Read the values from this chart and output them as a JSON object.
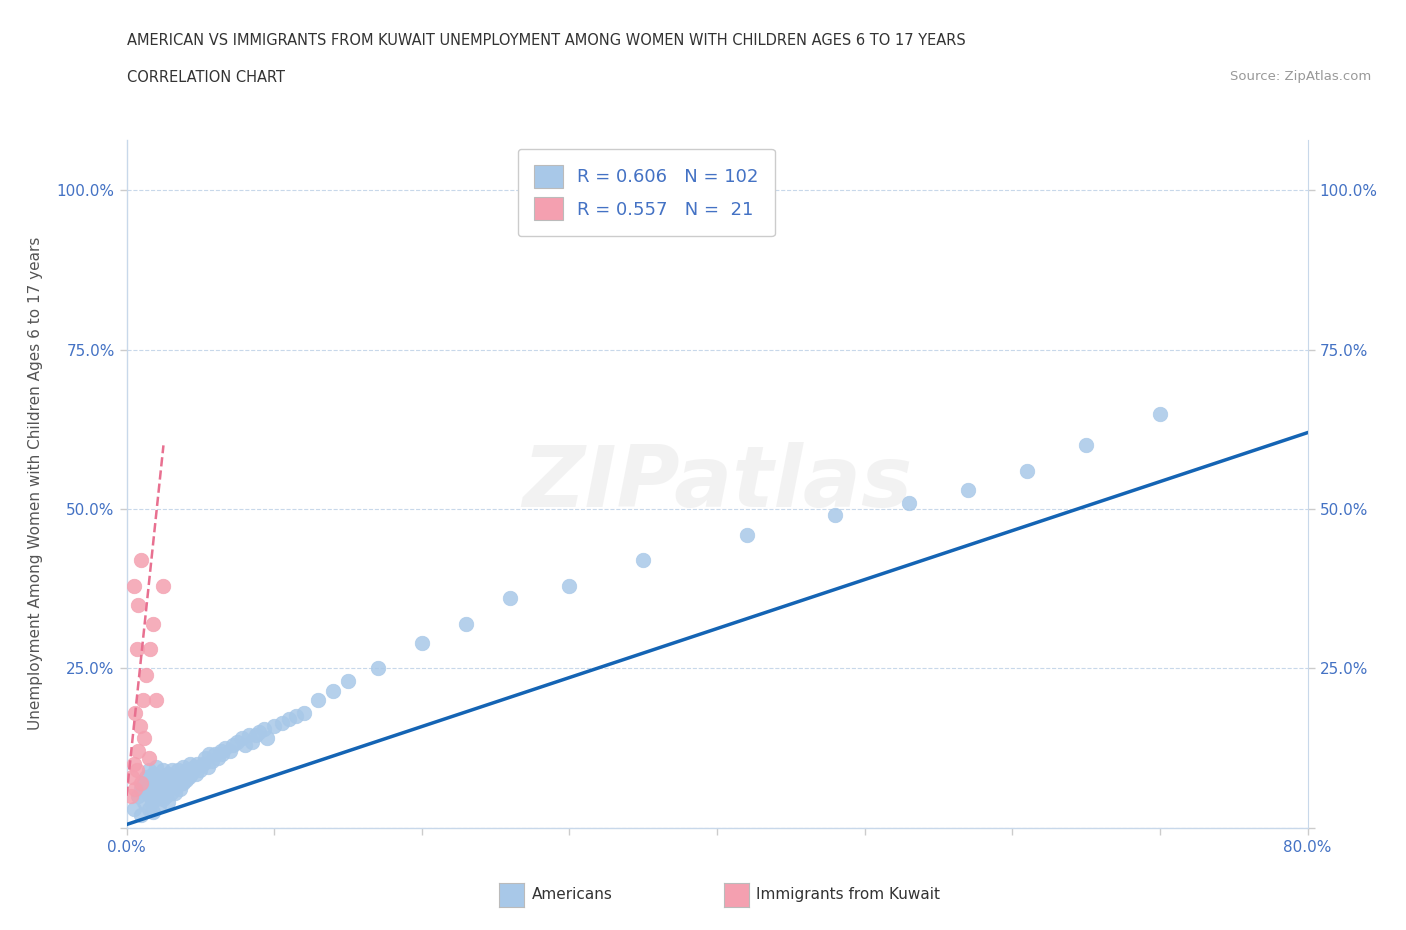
{
  "title_line1": "AMERICAN VS IMMIGRANTS FROM KUWAIT UNEMPLOYMENT AMONG WOMEN WITH CHILDREN AGES 6 TO 17 YEARS",
  "title_line2": "CORRELATION CHART",
  "source": "Source: ZipAtlas.com",
  "ylabel": "Unemployment Among Women with Children Ages 6 to 17 years",
  "xmin": 0.0,
  "xmax": 0.8,
  "ymin": 0.0,
  "ymax": 1.08,
  "yticks": [
    0.0,
    0.25,
    0.5,
    0.75,
    1.0
  ],
  "ytick_labels": [
    "",
    "25.0%",
    "50.0%",
    "75.0%",
    "100.0%"
  ],
  "xticks": [
    0.0,
    0.1,
    0.2,
    0.3,
    0.4,
    0.5,
    0.6,
    0.7,
    0.8
  ],
  "xtick_labels": [
    "0.0%",
    "",
    "",
    "",
    "",
    "",
    "",
    "",
    "80.0%"
  ],
  "legend_r_american": "0.606",
  "legend_n_american": "102",
  "legend_r_kuwait": "0.557",
  "legend_n_kuwait": "21",
  "american_color": "#a8c8e8",
  "kuwait_color": "#f4a0b0",
  "trendline_color": "#1464b4",
  "dashed_line_color": "#e87090",
  "watermark_text": "ZIPatlas",
  "american_scatter_x": [
    0.005,
    0.008,
    0.01,
    0.01,
    0.012,
    0.012,
    0.013,
    0.015,
    0.015,
    0.015,
    0.016,
    0.016,
    0.017,
    0.018,
    0.018,
    0.018,
    0.019,
    0.02,
    0.02,
    0.02,
    0.021,
    0.021,
    0.022,
    0.022,
    0.023,
    0.023,
    0.024,
    0.025,
    0.025,
    0.026,
    0.026,
    0.027,
    0.027,
    0.028,
    0.028,
    0.029,
    0.03,
    0.03,
    0.031,
    0.031,
    0.032,
    0.033,
    0.033,
    0.034,
    0.035,
    0.035,
    0.036,
    0.037,
    0.038,
    0.038,
    0.04,
    0.041,
    0.042,
    0.043,
    0.044,
    0.045,
    0.046,
    0.047,
    0.048,
    0.05,
    0.052,
    0.053,
    0.055,
    0.056,
    0.058,
    0.06,
    0.062,
    0.064,
    0.065,
    0.067,
    0.07,
    0.072,
    0.075,
    0.078,
    0.08,
    0.083,
    0.085,
    0.088,
    0.09,
    0.093,
    0.095,
    0.1,
    0.105,
    0.11,
    0.115,
    0.12,
    0.13,
    0.14,
    0.15,
    0.17,
    0.2,
    0.23,
    0.26,
    0.3,
    0.35,
    0.42,
    0.48,
    0.53,
    0.57,
    0.61,
    0.65,
    0.7
  ],
  "american_scatter_y": [
    0.03,
    0.05,
    0.06,
    0.02,
    0.07,
    0.04,
    0.08,
    0.03,
    0.06,
    0.09,
    0.05,
    0.075,
    0.04,
    0.065,
    0.085,
    0.025,
    0.055,
    0.045,
    0.07,
    0.095,
    0.06,
    0.08,
    0.035,
    0.055,
    0.075,
    0.05,
    0.065,
    0.045,
    0.09,
    0.06,
    0.08,
    0.05,
    0.07,
    0.04,
    0.085,
    0.06,
    0.055,
    0.075,
    0.065,
    0.09,
    0.07,
    0.055,
    0.08,
    0.065,
    0.09,
    0.07,
    0.06,
    0.08,
    0.07,
    0.095,
    0.075,
    0.09,
    0.08,
    0.1,
    0.085,
    0.09,
    0.095,
    0.085,
    0.1,
    0.09,
    0.1,
    0.11,
    0.095,
    0.115,
    0.105,
    0.115,
    0.11,
    0.12,
    0.115,
    0.125,
    0.12,
    0.13,
    0.135,
    0.14,
    0.13,
    0.145,
    0.135,
    0.145,
    0.15,
    0.155,
    0.14,
    0.16,
    0.165,
    0.17,
    0.175,
    0.18,
    0.2,
    0.215,
    0.23,
    0.25,
    0.29,
    0.32,
    0.36,
    0.38,
    0.42,
    0.46,
    0.49,
    0.51,
    0.53,
    0.56,
    0.6,
    0.65
  ],
  "kuwait_scatter_x": [
    0.003,
    0.004,
    0.005,
    0.005,
    0.006,
    0.006,
    0.007,
    0.007,
    0.008,
    0.008,
    0.009,
    0.01,
    0.01,
    0.011,
    0.012,
    0.013,
    0.015,
    0.016,
    0.018,
    0.02,
    0.025
  ],
  "kuwait_scatter_y": [
    0.05,
    0.08,
    0.1,
    0.38,
    0.06,
    0.18,
    0.09,
    0.28,
    0.12,
    0.35,
    0.16,
    0.07,
    0.42,
    0.2,
    0.14,
    0.24,
    0.11,
    0.28,
    0.32,
    0.2,
    0.38
  ],
  "trendline_x0": 0.0,
  "trendline_x1": 0.8,
  "trendline_y0": 0.005,
  "trendline_y1": 0.62,
  "kuwait_trendline_x0": 0.0,
  "kuwait_trendline_x1": 0.025,
  "kuwait_trendline_y0": 0.05,
  "kuwait_trendline_y1": 0.6
}
